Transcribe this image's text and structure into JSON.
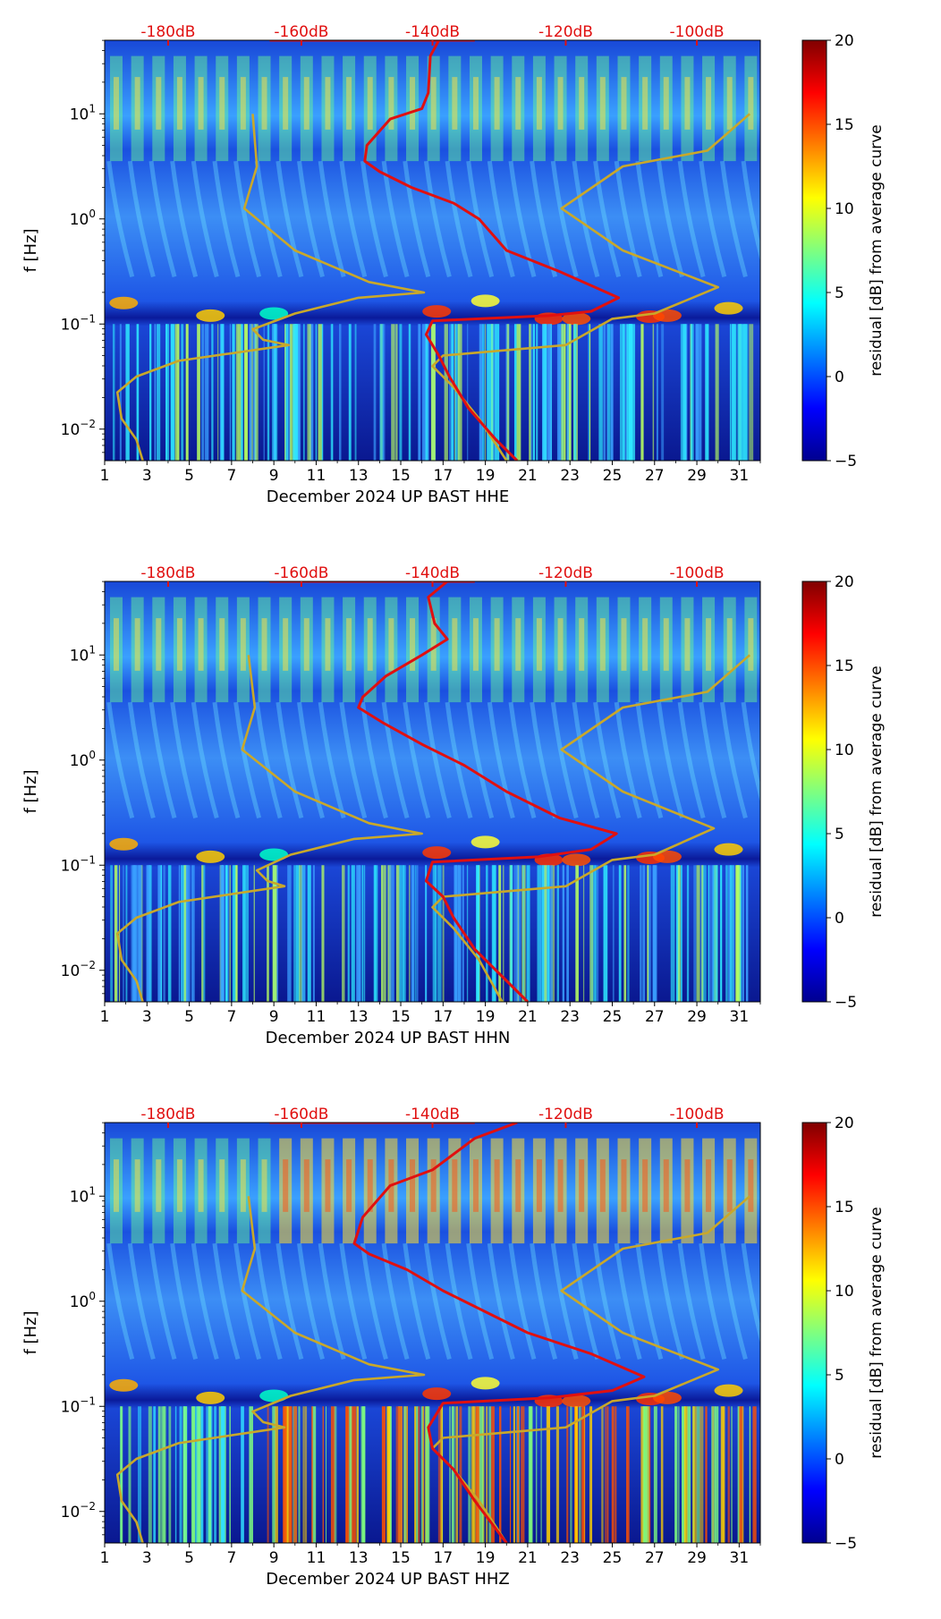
{
  "chart_data": [
    {
      "type": "heatmap",
      "title": "December 2024 UP BAST  HHE",
      "xlabel": "December 2024 UP BAST  HHE",
      "ylabel": "f [Hz]",
      "x_ticks": [
        "1",
        "3",
        "5",
        "7",
        "9",
        "11",
        "13",
        "15",
        "17",
        "19",
        "21",
        "23",
        "25",
        "27",
        "29",
        "31"
      ],
      "y_ticks": [
        "10^1",
        "10^0",
        "10^-1",
        "10^-2"
      ],
      "top_labels": [
        "-180dB",
        "-160dB",
        "-140dB",
        "-120dB",
        "-100dB"
      ],
      "colorbar": {
        "label": "residual [dB] from average curve",
        "ticks": [
          "20",
          "15",
          "10",
          "5",
          "0",
          "−5"
        ],
        "range": [
          -5,
          20
        ]
      },
      "xlim": [
        1,
        32
      ],
      "ylim_log10": [
        -2.3,
        1.7
      ],
      "red_curve": [
        [
          16.8,
          1.7
        ],
        [
          16.4,
          1.55
        ],
        [
          16.3,
          1.2
        ],
        [
          16.0,
          1.05
        ],
        [
          14.5,
          0.95
        ],
        [
          13.4,
          0.7
        ],
        [
          13.3,
          0.55
        ],
        [
          14.0,
          0.45
        ],
        [
          15.5,
          0.3
        ],
        [
          17.5,
          0.15
        ],
        [
          18.7,
          0.0
        ],
        [
          20.0,
          -0.3
        ],
        [
          22.5,
          -0.5
        ],
        [
          25.3,
          -0.75
        ],
        [
          24.0,
          -0.88
        ],
        [
          22.0,
          -0.92
        ],
        [
          16.5,
          -0.97
        ],
        [
          16.2,
          -1.1
        ],
        [
          16.8,
          -1.3
        ],
        [
          17.3,
          -1.5
        ],
        [
          18.2,
          -1.8
        ],
        [
          19.5,
          -2.1
        ],
        [
          20.5,
          -2.3
        ]
      ],
      "gold_curve_left": [
        [
          8.0,
          1.0
        ],
        [
          8.2,
          0.5
        ],
        [
          7.6,
          0.1
        ],
        [
          10.0,
          -0.3
        ],
        [
          13.5,
          -0.6
        ],
        [
          16.1,
          -0.7
        ],
        [
          13.0,
          -0.75
        ],
        [
          10.0,
          -0.9
        ],
        [
          8.0,
          -1.05
        ],
        [
          8.5,
          -1.15
        ],
        [
          9.7,
          -1.2
        ],
        [
          4.5,
          -1.35
        ],
        [
          2.5,
          -1.5
        ],
        [
          1.6,
          -1.65
        ],
        [
          1.8,
          -1.9
        ],
        [
          2.5,
          -2.1
        ],
        [
          2.8,
          -2.3
        ]
      ],
      "gold_curve_right": [
        [
          31.5,
          1.0
        ],
        [
          29.5,
          0.65
        ],
        [
          25.5,
          0.5
        ],
        [
          22.6,
          0.1
        ],
        [
          25.5,
          -0.3
        ],
        [
          30.0,
          -0.65
        ],
        [
          27.0,
          -0.9
        ],
        [
          25.0,
          -0.95
        ],
        [
          22.8,
          -1.2
        ],
        [
          17.0,
          -1.3
        ],
        [
          16.5,
          -1.4
        ],
        [
          17.5,
          -1.6
        ],
        [
          18.7,
          -1.9
        ],
        [
          20.0,
          -2.3
        ]
      ]
    },
    {
      "type": "heatmap",
      "title": "December 2024 UP BAST  HHN",
      "xlabel": "December 2024 UP BAST  HHN",
      "ylabel": "f [Hz]",
      "x_ticks": [
        "1",
        "3",
        "5",
        "7",
        "9",
        "11",
        "13",
        "15",
        "17",
        "19",
        "21",
        "23",
        "25",
        "27",
        "29",
        "31"
      ],
      "y_ticks": [
        "10^1",
        "10^0",
        "10^-1",
        "10^-2"
      ],
      "top_labels": [
        "-180dB",
        "-160dB",
        "-140dB",
        "-120dB",
        "-100dB"
      ],
      "colorbar": {
        "label": "residual [dB] from average curve",
        "ticks": [
          "20",
          "15",
          "10",
          "5",
          "0",
          "−5"
        ],
        "range": [
          -5,
          20
        ]
      },
      "xlim": [
        1,
        32
      ],
      "ylim_log10": [
        -2.3,
        1.7
      ],
      "red_curve": [
        [
          17.2,
          1.7
        ],
        [
          16.3,
          1.55
        ],
        [
          16.6,
          1.3
        ],
        [
          17.2,
          1.15
        ],
        [
          16.0,
          1.0
        ],
        [
          14.3,
          0.8
        ],
        [
          13.2,
          0.6
        ],
        [
          13.0,
          0.5
        ],
        [
          14.2,
          0.35
        ],
        [
          16.0,
          0.15
        ],
        [
          18.0,
          -0.05
        ],
        [
          20.0,
          -0.3
        ],
        [
          22.5,
          -0.55
        ],
        [
          25.2,
          -0.7
        ],
        [
          24.0,
          -0.85
        ],
        [
          21.5,
          -0.92
        ],
        [
          16.5,
          -0.97
        ],
        [
          16.2,
          -1.15
        ],
        [
          17.0,
          -1.3
        ],
        [
          17.5,
          -1.5
        ],
        [
          18.5,
          -1.8
        ],
        [
          20.0,
          -2.1
        ],
        [
          21.0,
          -2.3
        ]
      ],
      "gold_curve_left": [
        [
          7.8,
          1.0
        ],
        [
          8.1,
          0.5
        ],
        [
          7.5,
          0.1
        ],
        [
          10.0,
          -0.3
        ],
        [
          13.5,
          -0.6
        ],
        [
          16.0,
          -0.7
        ],
        [
          12.8,
          -0.75
        ],
        [
          9.8,
          -0.9
        ],
        [
          8.2,
          -1.05
        ],
        [
          8.7,
          -1.15
        ],
        [
          9.5,
          -1.2
        ],
        [
          4.5,
          -1.35
        ],
        [
          2.5,
          -1.5
        ],
        [
          1.6,
          -1.65
        ],
        [
          1.8,
          -1.9
        ],
        [
          2.5,
          -2.1
        ],
        [
          2.8,
          -2.3
        ]
      ],
      "gold_curve_right": [
        [
          31.5,
          1.0
        ],
        [
          29.5,
          0.65
        ],
        [
          25.5,
          0.5
        ],
        [
          22.6,
          0.1
        ],
        [
          25.5,
          -0.3
        ],
        [
          29.8,
          -0.65
        ],
        [
          27.0,
          -0.9
        ],
        [
          25.0,
          -0.95
        ],
        [
          22.8,
          -1.2
        ],
        [
          17.0,
          -1.3
        ],
        [
          16.5,
          -1.4
        ],
        [
          17.5,
          -1.6
        ],
        [
          18.7,
          -1.9
        ],
        [
          19.8,
          -2.3
        ]
      ]
    },
    {
      "type": "heatmap",
      "title": "December 2024 UP BAST  HHZ",
      "xlabel": "December 2024 UP BAST  HHZ",
      "ylabel": "f [Hz]",
      "x_ticks": [
        "1",
        "3",
        "5",
        "7",
        "9",
        "11",
        "13",
        "15",
        "17",
        "19",
        "21",
        "23",
        "25",
        "27",
        "29",
        "31"
      ],
      "y_ticks": [
        "10^1",
        "10^0",
        "10^-1",
        "10^-2"
      ],
      "top_labels": [
        "-180dB",
        "-160dB",
        "-140dB",
        "-120dB",
        "-100dB"
      ],
      "colorbar": {
        "label": "residual [dB] from average curve",
        "ticks": [
          "20",
          "15",
          "10",
          "5",
          "0",
          "−5"
        ],
        "range": [
          -5,
          20
        ]
      },
      "xlim": [
        1,
        32
      ],
      "ylim_log10": [
        -2.3,
        1.7
      ],
      "red_curve": [
        [
          20.5,
          1.7
        ],
        [
          18.5,
          1.55
        ],
        [
          16.5,
          1.25
        ],
        [
          14.5,
          1.1
        ],
        [
          13.2,
          0.8
        ],
        [
          12.8,
          0.55
        ],
        [
          13.5,
          0.45
        ],
        [
          15.3,
          0.3
        ],
        [
          17.0,
          0.1
        ],
        [
          18.5,
          -0.05
        ],
        [
          21.0,
          -0.3
        ],
        [
          24.0,
          -0.5
        ],
        [
          26.5,
          -0.72
        ],
        [
          25.0,
          -0.85
        ],
        [
          22.0,
          -0.92
        ],
        [
          17.0,
          -0.97
        ],
        [
          16.3,
          -1.2
        ],
        [
          16.5,
          -1.4
        ],
        [
          17.5,
          -1.6
        ],
        [
          18.5,
          -1.9
        ],
        [
          20.0,
          -2.3
        ]
      ],
      "gold_curve_left": [
        [
          7.8,
          1.0
        ],
        [
          8.1,
          0.5
        ],
        [
          7.5,
          0.1
        ],
        [
          10.0,
          -0.3
        ],
        [
          13.5,
          -0.6
        ],
        [
          16.1,
          -0.7
        ],
        [
          12.8,
          -0.75
        ],
        [
          9.8,
          -0.9
        ],
        [
          8.0,
          -1.05
        ],
        [
          8.5,
          -1.15
        ],
        [
          9.5,
          -1.2
        ],
        [
          4.5,
          -1.35
        ],
        [
          2.5,
          -1.5
        ],
        [
          1.6,
          -1.65
        ],
        [
          1.8,
          -1.9
        ],
        [
          2.5,
          -2.1
        ],
        [
          2.8,
          -2.3
        ]
      ],
      "gold_curve_right": [
        [
          31.5,
          1.0
        ],
        [
          29.5,
          0.65
        ],
        [
          25.5,
          0.5
        ],
        [
          22.6,
          0.1
        ],
        [
          25.5,
          -0.3
        ],
        [
          30.0,
          -0.65
        ],
        [
          27.0,
          -0.9
        ],
        [
          25.0,
          -0.95
        ],
        [
          22.8,
          -1.2
        ],
        [
          17.0,
          -1.3
        ],
        [
          16.5,
          -1.4
        ],
        [
          17.5,
          -1.6
        ],
        [
          18.7,
          -1.9
        ],
        [
          20.0,
          -2.3
        ]
      ]
    }
  ],
  "colors": {
    "red_curve": "#e01010",
    "gold_curve": "#c9a82a",
    "top_label": "#e01010"
  }
}
